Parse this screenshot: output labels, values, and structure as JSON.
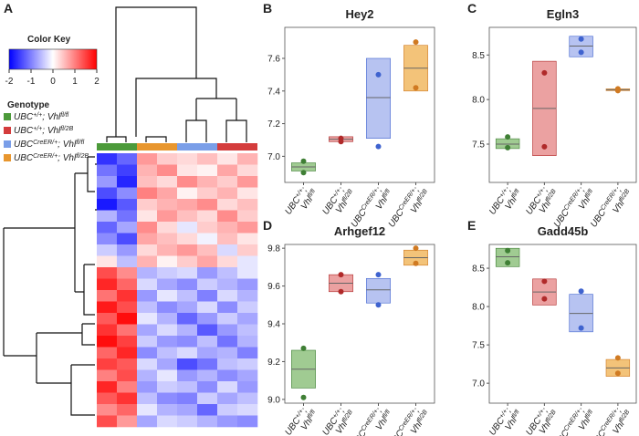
{
  "chart_data": [
    {
      "type": "heatmap",
      "panel_label": "A",
      "colorbar_title": "Color Key",
      "colorbar_lim": [
        -2,
        2
      ],
      "colorbar_ticks": [
        -2,
        -1,
        0,
        1,
        2
      ],
      "colorbar_colors": [
        "#0000ff",
        "#ffffff",
        "#ff0000"
      ],
      "legend_title": "Genotype",
      "legend": [
        {
          "name": [
            "UBC",
            "+/+",
            "; ",
            "Vhl",
            "fl/fl"
          ],
          "color": "#4c9a3a"
        },
        {
          "name": [
            "UBC",
            "+/+",
            "; ",
            "Vhl",
            "fl/2B"
          ],
          "color": "#d43c3c"
        },
        {
          "name": [
            "UBC",
            "CreER/+",
            "; ",
            "Vhl",
            "fl/fl"
          ],
          "color": "#7a9ee8"
        },
        {
          "name": [
            "UBC",
            "CreER/+",
            "; ",
            "Vhl",
            "fl/2B"
          ],
          "color": "#e8962e"
        }
      ],
      "column_colors": [
        "#4c9a3a",
        "#4c9a3a",
        "#e8962e",
        "#e8962e",
        "#7a9ee8",
        "#7a9ee8",
        "#d43c3c",
        "#d43c3c"
      ],
      "values": [
        [
          -1.6,
          -1.2,
          0.8,
          0.4,
          0.3,
          0.5,
          0.2,
          0.6
        ],
        [
          -1.1,
          -1.5,
          0.6,
          0.9,
          0.2,
          0.1,
          0.7,
          0.3
        ],
        [
          -0.8,
          -1.7,
          0.5,
          0.3,
          0.9,
          0.6,
          0.4,
          0.8
        ],
        [
          -1.4,
          -0.9,
          1.0,
          0.7,
          0.1,
          0.4,
          0.6,
          0.2
        ],
        [
          -1.8,
          -1.3,
          0.4,
          0.6,
          0.7,
          0.9,
          0.3,
          0.5
        ],
        [
          -0.6,
          -1.1,
          0.2,
          0.8,
          0.5,
          0.3,
          0.9,
          0.4
        ],
        [
          -1.2,
          -0.7,
          0.9,
          0.3,
          -0.2,
          0.4,
          0.6,
          0.8
        ],
        [
          -0.9,
          -1.4,
          0.7,
          0.5,
          0.3,
          -0.1,
          0.5,
          0.2
        ],
        [
          -0.4,
          -0.8,
          0.3,
          0.6,
          0.8,
          0.5,
          -0.3,
          0.4
        ],
        [
          0.2,
          -0.5,
          0.6,
          0.1,
          0.4,
          0.7,
          0.3,
          -0.2
        ],
        [
          1.4,
          0.9,
          -0.6,
          -0.4,
          -0.3,
          -0.8,
          -0.5,
          -0.2
        ],
        [
          1.7,
          1.2,
          -0.3,
          -0.7,
          -0.9,
          -0.4,
          -0.6,
          -0.8
        ],
        [
          1.1,
          1.6,
          -0.8,
          -0.2,
          -0.5,
          -1.0,
          -0.3,
          -0.6
        ],
        [
          1.8,
          1.4,
          -0.5,
          -0.9,
          -0.7,
          -0.3,
          -0.9,
          -0.4
        ],
        [
          1.3,
          1.9,
          -0.2,
          -0.6,
          -1.2,
          -0.8,
          -0.4,
          -0.7
        ],
        [
          1.6,
          1.1,
          -0.7,
          -0.3,
          -0.6,
          -1.3,
          -0.8,
          -0.5
        ],
        [
          1.9,
          1.5,
          -0.4,
          -0.8,
          -0.9,
          -0.5,
          -1.1,
          -0.6
        ],
        [
          1.2,
          1.7,
          -0.9,
          -0.5,
          -0.3,
          -0.7,
          -0.6,
          -1.0
        ],
        [
          1.5,
          1.3,
          -0.3,
          -0.7,
          -1.4,
          -1.1,
          -0.5,
          -0.4
        ],
        [
          1.0,
          1.4,
          -0.6,
          -0.2,
          -0.8,
          -0.6,
          -0.9,
          -0.7
        ],
        [
          1.7,
          1.0,
          -0.8,
          -0.4,
          -0.5,
          -0.9,
          -0.3,
          -0.8
        ],
        [
          1.3,
          1.6,
          -0.5,
          -0.9,
          -1.0,
          -0.4,
          -0.7,
          -0.5
        ],
        [
          0.9,
          1.2,
          -0.2,
          -0.6,
          -0.7,
          -1.2,
          -0.4,
          -0.3
        ],
        [
          1.4,
          0.8,
          -0.7,
          -0.3,
          -0.4,
          -0.6,
          -0.8,
          -0.9
        ]
      ]
    },
    {
      "type": "crossbar",
      "panel_label": "B",
      "title": "Hey2",
      "categories": [
        [
          "UBC",
          "+/+",
          "; ",
          "Vhl",
          "fl/fl"
        ],
        [
          "UBC",
          "+/+",
          "; ",
          "Vhl",
          "fl/2B"
        ],
        [
          "UBC",
          "CreER/+",
          "; ",
          "Vhl",
          "fl/fl"
        ],
        [
          "UBC",
          "CreER/+",
          "; ",
          "Vhl",
          "fl/2B"
        ]
      ],
      "point_colors": [
        "#3f7f35",
        "#b02a2a",
        "#3f63cf",
        "#d07a22"
      ],
      "fill_colors": [
        "#8fc27f",
        "#e89090",
        "#aab9ee",
        "#f1b962"
      ],
      "points": [
        [
          6.97,
          6.9
        ],
        [
          7.11,
          7.09
        ],
        [
          7.5,
          7.06
        ],
        [
          7.7,
          7.42
        ]
      ],
      "boxes": [
        [
          6.91,
          6.935,
          6.96
        ],
        [
          7.09,
          7.105,
          7.12
        ],
        [
          7.11,
          7.36,
          7.6
        ],
        [
          7.4,
          7.54,
          7.68
        ]
      ],
      "ylim": [
        6.84,
        7.79
      ],
      "yticks": [
        {
          "value": 7,
          "label": "7.0"
        },
        7.2,
        7.4,
        7.6
      ]
    },
    {
      "type": "crossbar",
      "panel_label": "C",
      "title": "Egln3",
      "categories": [
        [
          "UBC",
          "+/+",
          "; ",
          "Vhl",
          "fl/fl"
        ],
        [
          "UBC",
          "+/+",
          "; ",
          "Vhl",
          "fl/2B"
        ],
        [
          "UBC",
          "CreER/+",
          "; ",
          "Vhl",
          "fl/fl"
        ],
        [
          "UBC",
          "CreER/+",
          "; ",
          "Vhl",
          "fl/2B"
        ]
      ],
      "point_colors": [
        "#3f7f35",
        "#b02a2a",
        "#3f63cf",
        "#d07a22"
      ],
      "fill_colors": [
        "#8fc27f",
        "#e89090",
        "#aab9ee",
        "#f1b962"
      ],
      "points": [
        [
          7.58,
          7.46
        ],
        [
          8.3,
          7.47
        ],
        [
          8.68,
          8.53
        ],
        [
          8.12,
          8.1
        ]
      ],
      "boxes": [
        [
          7.45,
          7.5,
          7.56
        ],
        [
          7.37,
          7.9,
          8.43
        ],
        [
          8.48,
          8.6,
          8.71
        ],
        [
          8.1,
          8.11,
          8.12
        ]
      ],
      "ylim": [
        7.07,
        8.81
      ],
      "yticks": [
        7.5,
        {
          "value": 8,
          "label": "8.0"
        },
        8.5
      ]
    },
    {
      "type": "crossbar",
      "panel_label": "D",
      "title": "Arhgef12",
      "categories": [
        [
          "UBC",
          "+/+",
          "; ",
          "Vhl",
          "fl/fl"
        ],
        [
          "UBC",
          "+/+",
          "; ",
          "Vhl",
          "fl/2B"
        ],
        [
          "UBC",
          "CreER/+",
          "; ",
          "Vhl",
          "fl/fl"
        ],
        [
          "UBC",
          "CreER/+",
          "; ",
          "Vhl",
          "fl/2B"
        ]
      ],
      "point_colors": [
        "#3f7f35",
        "#b02a2a",
        "#3f63cf",
        "#d07a22"
      ],
      "fill_colors": [
        "#8fc27f",
        "#e89090",
        "#aab9ee",
        "#f1b962"
      ],
      "points": [
        [
          9.27,
          9.01
        ],
        [
          9.66,
          9.57
        ],
        [
          9.66,
          9.5
        ],
        [
          9.8,
          9.72
        ]
      ],
      "boxes": [
        [
          9.06,
          9.16,
          9.26
        ],
        [
          9.57,
          9.615,
          9.66
        ],
        [
          9.51,
          9.58,
          9.64
        ],
        [
          9.71,
          9.75,
          9.79
        ]
      ],
      "ylim": [
        8.98,
        9.82
      ],
      "yticks": [
        {
          "value": 9,
          "label": "9.0"
        },
        9.2,
        9.4,
        9.6,
        9.8
      ]
    },
    {
      "type": "crossbar",
      "panel_label": "E",
      "title": "Gadd45b",
      "categories": [
        [
          "UBC",
          "+/+",
          "; ",
          "Vhl",
          "fl/fl"
        ],
        [
          "UBC",
          "+/+",
          "; ",
          "Vhl",
          "fl/2B"
        ],
        [
          "UBC",
          "CreER/+",
          "; ",
          "Vhl",
          "fl/fl"
        ],
        [
          "UBC",
          "CreER/+",
          "; ",
          "Vhl",
          "fl/2B"
        ]
      ],
      "point_colors": [
        "#3f7f35",
        "#b02a2a",
        "#3f63cf",
        "#d07a22"
      ],
      "fill_colors": [
        "#8fc27f",
        "#e89090",
        "#aab9ee",
        "#f1b962"
      ],
      "points": [
        [
          8.73,
          8.57
        ],
        [
          8.33,
          8.1
        ],
        [
          8.2,
          7.72
        ],
        [
          7.33,
          7.13
        ]
      ],
      "boxes": [
        [
          8.52,
          8.65,
          8.76
        ],
        [
          8.02,
          8.19,
          8.36
        ],
        [
          7.67,
          7.91,
          8.16
        ],
        [
          7.09,
          7.2,
          7.31
        ]
      ],
      "ylim": [
        6.74,
        8.81
      ],
      "yticks": [
        {
          "value": 7,
          "label": "7.0"
        },
        7.5,
        {
          "value": 8,
          "label": "8.0"
        },
        8.5
      ]
    }
  ]
}
